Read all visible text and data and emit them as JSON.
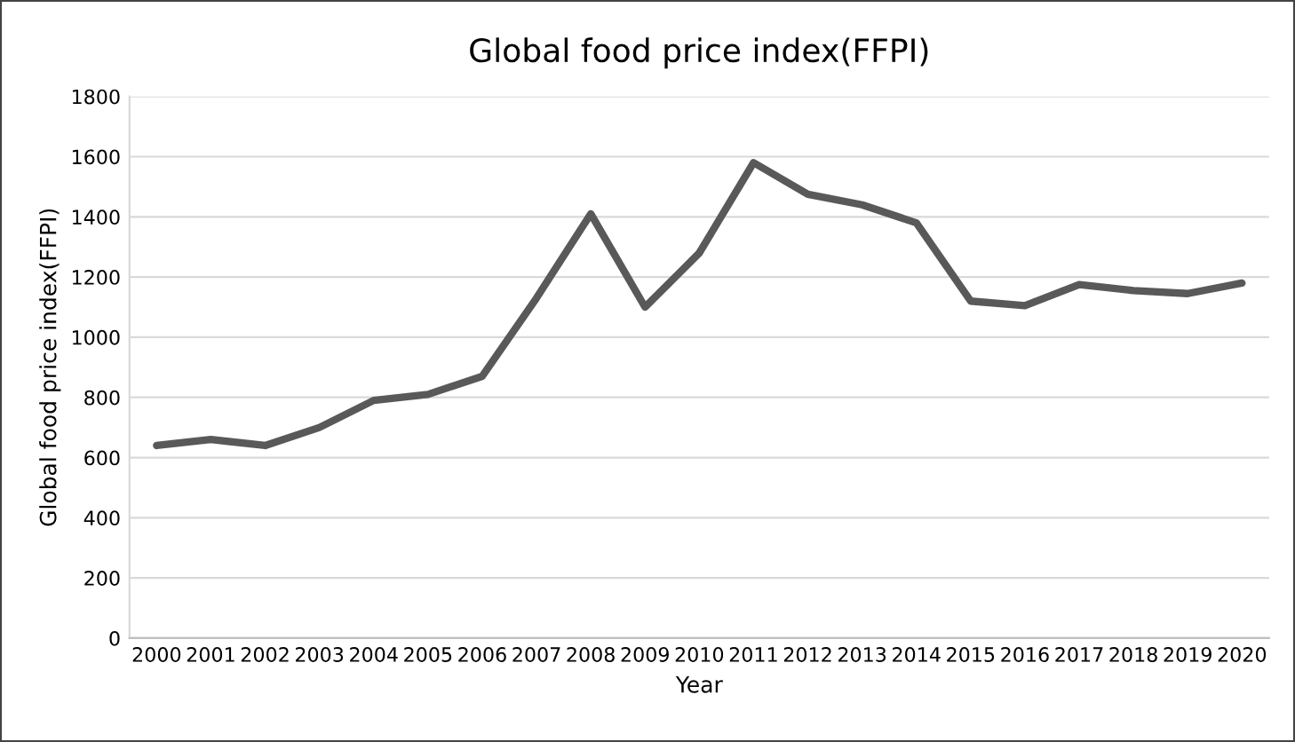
{
  "chart_data": {
    "type": "line",
    "title": "Global food price index(FFPI)",
    "xlabel": "Year",
    "ylabel": "Global food price index(FFPI)",
    "categories": [
      "2000",
      "2001",
      "2002",
      "2003",
      "2004",
      "2005",
      "2006",
      "2007",
      "2008",
      "2009",
      "2010",
      "2011",
      "2012",
      "2013",
      "2014",
      "2015",
      "2016",
      "2017",
      "2018",
      "2019",
      "2020"
    ],
    "series": [
      {
        "color": "#595959",
        "values": [
          640,
          660,
          640,
          700,
          790,
          810,
          870,
          1130,
          1410,
          1100,
          1280,
          1580,
          1475,
          1440,
          1380,
          1120,
          1105,
          1175,
          1155,
          1145,
          1180
        ]
      }
    ],
    "ylim": [
      0,
      1800
    ],
    "yticks": [
      0,
      200,
      400,
      600,
      800,
      1000,
      1200,
      1400,
      1600,
      1800
    ],
    "grid": "y",
    "marker": "none",
    "line_style": "solid"
  }
}
